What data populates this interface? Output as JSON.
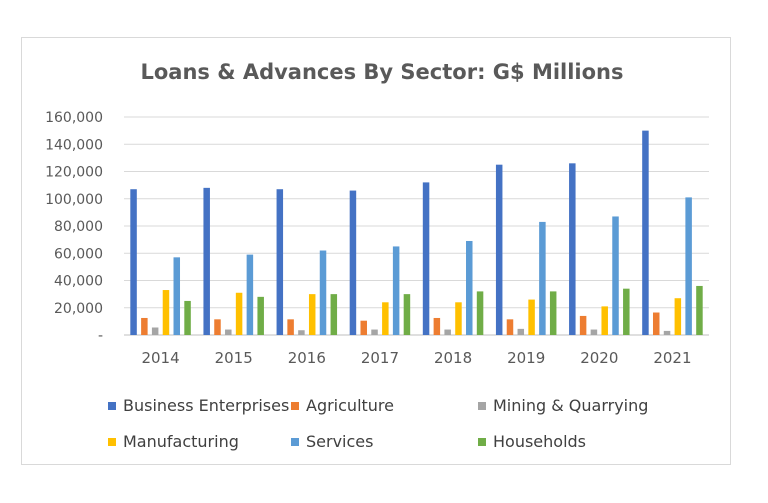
{
  "chart_data": {
    "type": "bar",
    "title": "Loans & Advances By Sector: G$ Millions",
    "xlabel": "",
    "ylabel": "",
    "categories": [
      "2014",
      "2015",
      "2016",
      "2017",
      "2018",
      "2019",
      "2020",
      "2021"
    ],
    "ylim": [
      0,
      160000
    ],
    "yticks": [
      0,
      20000,
      40000,
      60000,
      80000,
      100000,
      120000,
      140000,
      160000
    ],
    "ytick_labels": [
      "-",
      "20,000",
      "40,000",
      "60,000",
      "80,000",
      "100,000",
      "120,000",
      "140,000",
      "160,000"
    ],
    "grid": true,
    "legend_position": "bottom",
    "series": [
      {
        "name": "Business Enterprises",
        "color": "#4472c4",
        "values": [
          107000,
          108000,
          107000,
          106000,
          112000,
          125000,
          126000,
          150000
        ]
      },
      {
        "name": "Agriculture",
        "color": "#ed7d31",
        "values": [
          12500,
          11500,
          11500,
          10500,
          12500,
          11500,
          14000,
          16500
        ]
      },
      {
        "name": "Mining & Quarrying",
        "color": "#a5a5a5",
        "values": [
          5500,
          4000,
          3500,
          4000,
          4000,
          4500,
          4000,
          3000
        ]
      },
      {
        "name": "Manufacturing",
        "color": "#ffc000",
        "values": [
          33000,
          31000,
          30000,
          24000,
          24000,
          26000,
          21000,
          27000
        ]
      },
      {
        "name": "Services",
        "color": "#5b9bd5",
        "values": [
          57000,
          59000,
          62000,
          65000,
          69000,
          83000,
          87000,
          101000
        ]
      },
      {
        "name": "Households",
        "color": "#70ad47",
        "values": [
          25000,
          28000,
          30000,
          30000,
          32000,
          32000,
          34000,
          36000
        ]
      }
    ]
  }
}
